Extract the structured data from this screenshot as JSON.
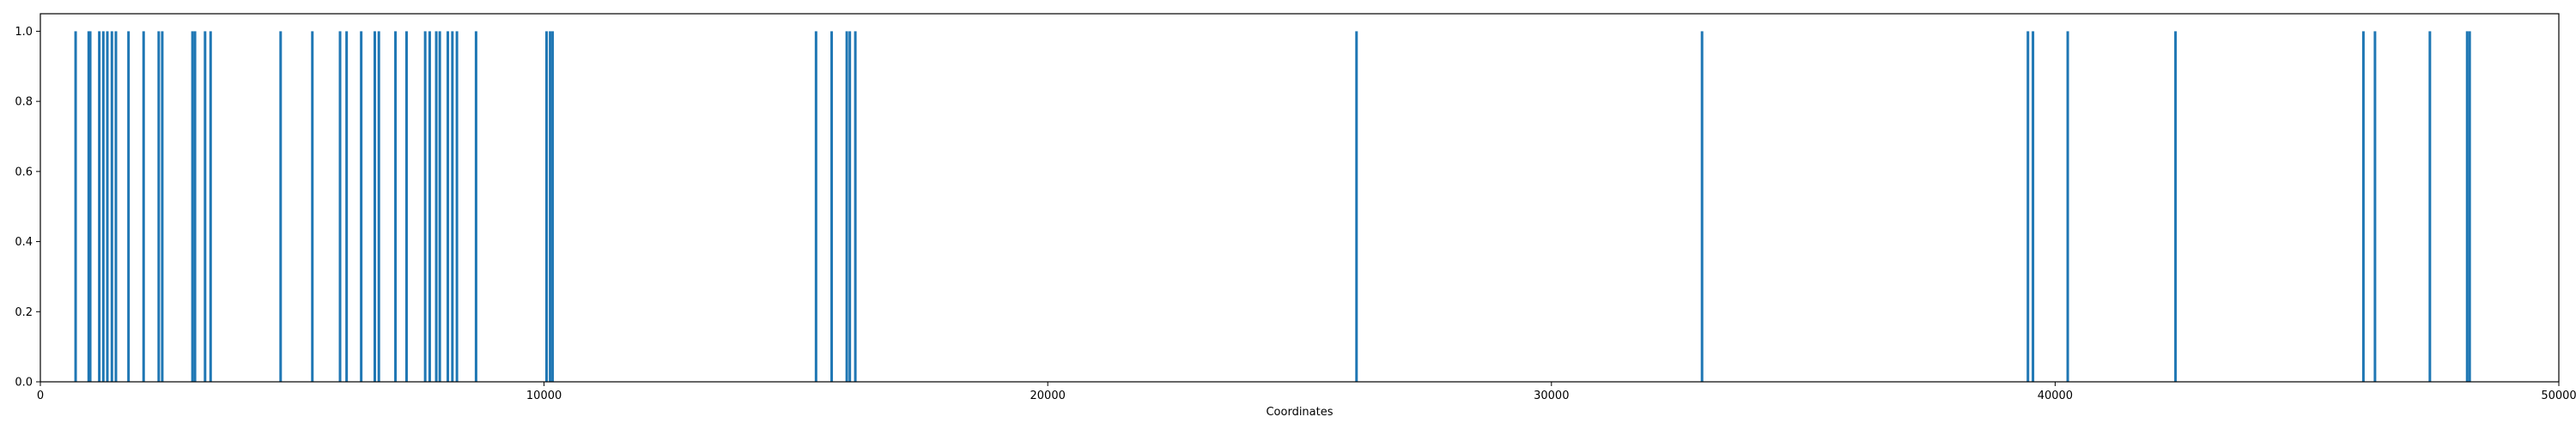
{
  "chart_data": {
    "type": "bar",
    "title": "",
    "xlabel": "Coordinates",
    "ylabel": "",
    "xlim": [
      0,
      50000
    ],
    "ylim": [
      0,
      1.05
    ],
    "grid": false,
    "bar_color": "#1f77b4",
    "x_ticks": [
      0,
      10000,
      20000,
      30000,
      40000,
      50000
    ],
    "x_tick_labels": [
      "0",
      "10000",
      "20000",
      "30000",
      "40000",
      "50000"
    ],
    "y_ticks": [
      0.0,
      0.2,
      0.4,
      0.6,
      0.8,
      1.0
    ],
    "y_tick_labels": [
      "0.0",
      "0.2",
      "0.4",
      "0.6",
      "0.8",
      "1.0"
    ],
    "x": [
      700,
      960,
      990,
      1170,
      1250,
      1330,
      1420,
      1500,
      1750,
      2050,
      2350,
      2420,
      3020,
      3070,
      3270,
      3380,
      4770,
      5400,
      5950,
      6080,
      6370,
      6640,
      6720,
      7050,
      7270,
      7640,
      7730,
      7860,
      7930,
      8090,
      8180,
      8270,
      8650,
      10050,
      10120,
      10170,
      15400,
      15710,
      16010,
      16070,
      16180,
      26130,
      32990,
      39460,
      39560,
      40250,
      42390,
      46120,
      46350,
      47440,
      48180,
      48230
    ],
    "values": [
      1,
      1,
      1,
      1,
      1,
      1,
      1,
      1,
      1,
      1,
      1,
      1,
      1,
      1,
      1,
      1,
      1,
      1,
      1,
      1,
      1,
      1,
      1,
      1,
      1,
      1,
      1,
      1,
      1,
      1,
      1,
      1,
      1,
      1,
      1,
      1,
      1,
      1,
      1,
      1,
      1,
      1,
      1,
      1,
      1,
      1,
      1,
      1,
      1,
      1,
      1,
      1
    ]
  }
}
